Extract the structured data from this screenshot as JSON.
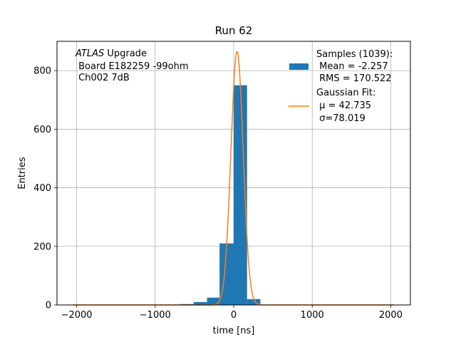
{
  "chart_data": {
    "type": "bar",
    "title": "Run 62",
    "xlabel": "time [ns]",
    "ylabel": "Entries",
    "xlim": [
      -2250,
      2250
    ],
    "ylim": [
      0,
      900
    ],
    "xticks": [
      -2000,
      -1000,
      0,
      1000,
      2000
    ],
    "xtick_labels": [
      "−2000",
      "−1000",
      "0",
      "1000",
      "2000"
    ],
    "yticks": [
      0,
      200,
      400,
      600,
      800
    ],
    "ytick_labels": [
      "0",
      "200",
      "400",
      "600",
      "800"
    ],
    "grid": true,
    "histogram": {
      "name": "Samples (1039):",
      "color": "#1f77b4",
      "bins": [
        {
          "x0": -690,
          "x1": -510,
          "count": 3
        },
        {
          "x0": -510,
          "x1": -340,
          "count": 10
        },
        {
          "x0": -340,
          "x1": -180,
          "count": 25
        },
        {
          "x0": -180,
          "x1": 0,
          "count": 210
        },
        {
          "x0": 0,
          "x1": 170,
          "count": 750
        },
        {
          "x0": 170,
          "x1": 340,
          "count": 20
        }
      ]
    },
    "fit": {
      "name": "Gaussian Fit:",
      "color": "#ff7f0e",
      "mu": 42.735,
      "sigma": 78.019,
      "amplitude": 865,
      "x_range": [
        -2050,
        2050
      ]
    },
    "legend": {
      "placement": "top-right",
      "samples_lines": [
        "Samples (1039):",
        " Mean = -2.257",
        " RMS = 170.522"
      ],
      "fit_lines": [
        "Gaussian Fit:",
        " μ = 42.735",
        " σ=78.019"
      ]
    },
    "annotation": {
      "brand": "ATLAS",
      "brand_suffix": " Upgrade",
      "lines": [
        " Board E182259 -99ohm",
        " Ch002 7dB"
      ]
    }
  }
}
